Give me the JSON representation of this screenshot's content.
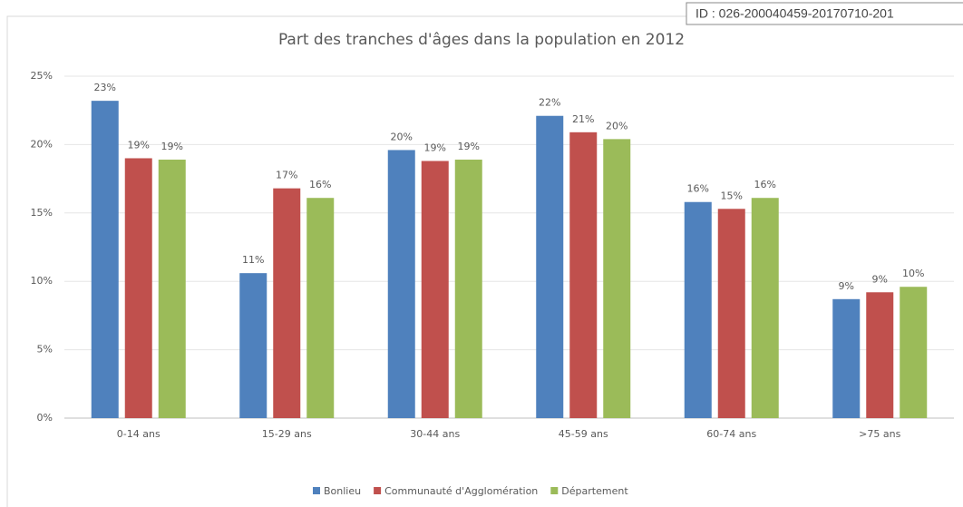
{
  "chart_data": {
    "type": "bar",
    "title": "Part des tranches d'âges dans la population en 2012",
    "annotation": "ID : 026-200040459-20170710-201",
    "categories": [
      "0-14 ans",
      "15-29 ans",
      "30-44 ans",
      "45-59 ans",
      "60-74 ans",
      ">75 ans"
    ],
    "series": [
      {
        "name": "Bonlieu",
        "color": "#4f81bd",
        "values": [
          23.2,
          10.6,
          19.6,
          22.1,
          15.8,
          8.7
        ],
        "value_labels": [
          "23%",
          "11%",
          "20%",
          "22%",
          "16%",
          "9%"
        ]
      },
      {
        "name": "Communauté d'Agglomération",
        "color": "#c0504d",
        "values": [
          19.0,
          16.8,
          18.8,
          20.9,
          15.3,
          9.2
        ],
        "value_labels": [
          "19%",
          "17%",
          "19%",
          "21%",
          "15%",
          "9%"
        ]
      },
      {
        "name": "Département",
        "color": "#9bbb59",
        "values": [
          18.9,
          16.1,
          18.9,
          20.4,
          16.1,
          9.6
        ],
        "value_labels": [
          "19%",
          "16%",
          "19%",
          "20%",
          "16%",
          "10%"
        ]
      }
    ],
    "ylim": [
      0,
      25
    ],
    "yticks": [
      {
        "value": 0,
        "label": "0%"
      },
      {
        "value": 5,
        "label": "5%"
      },
      {
        "value": 10,
        "label": "10%"
      },
      {
        "value": 15,
        "label": "15%"
      },
      {
        "value": 20,
        "label": "20%"
      },
      {
        "value": 25,
        "label": "25%"
      }
    ],
    "grid": true,
    "legend": "bottom"
  }
}
